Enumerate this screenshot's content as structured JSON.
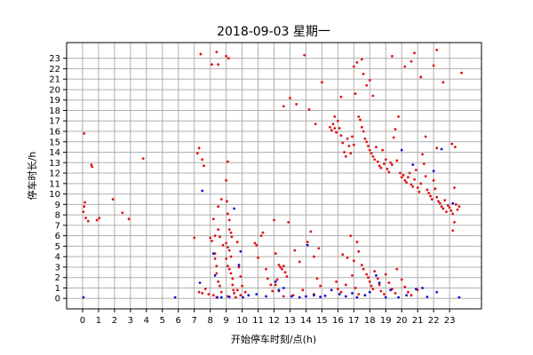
{
  "chart_data": {
    "type": "scatter",
    "title": "2018-09-03 星期一",
    "xlabel": "开始停车时刻/点(h)",
    "ylabel": "停车时长/h",
    "xlim": [
      -1,
      25
    ],
    "ylim": [
      -1,
      24.5
    ],
    "xticks": [
      0,
      1,
      2,
      3,
      4,
      5,
      6,
      7,
      8,
      9,
      10,
      11,
      12,
      13,
      14,
      15,
      16,
      17,
      18,
      19,
      20,
      21,
      22,
      23
    ],
    "yticks": [
      0,
      1,
      2,
      3,
      4,
      5,
      6,
      7,
      8,
      9,
      10,
      11,
      12,
      13,
      14,
      15,
      16,
      17,
      18,
      19,
      20,
      21,
      22,
      23
    ],
    "grid": true,
    "colors": {
      "series_red": "#e01010",
      "series_blue": "#1010d0",
      "grid": "#b0b0b0"
    },
    "series": [
      {
        "color": "#e01010",
        "points": [
          [
            0.1,
            15.8
          ],
          [
            0.05,
            8.3
          ],
          [
            0.1,
            8.8
          ],
          [
            0.15,
            9.2
          ],
          [
            0.2,
            7.7
          ],
          [
            0.35,
            7.4
          ],
          [
            0.55,
            12.8
          ],
          [
            0.6,
            12.6
          ],
          [
            0.9,
            7.5
          ],
          [
            1.05,
            7.7
          ],
          [
            1.9,
            9.5
          ],
          [
            2.5,
            8.2
          ],
          [
            2.9,
            7.6
          ],
          [
            3.8,
            13.4
          ],
          [
            7.0,
            5.8
          ],
          [
            7.2,
            13.9
          ],
          [
            7.3,
            14.4
          ],
          [
            7.4,
            23.4
          ],
          [
            7.5,
            13.3
          ],
          [
            7.6,
            12.7
          ],
          [
            7.3,
            0.6
          ],
          [
            7.5,
            0.5
          ],
          [
            7.7,
            0.9
          ],
          [
            7.9,
            0.4
          ],
          [
            8.1,
            22.4
          ],
          [
            8.4,
            23.6
          ],
          [
            8.5,
            22.4
          ],
          [
            8.7,
            9.5
          ],
          [
            8.0,
            5.8
          ],
          [
            8.1,
            5.5
          ],
          [
            8.2,
            7.6
          ],
          [
            8.3,
            4.3
          ],
          [
            8.3,
            3.8
          ],
          [
            8.4,
            3.1
          ],
          [
            8.4,
            2.4
          ],
          [
            8.5,
            1.6
          ],
          [
            8.6,
            1.2
          ],
          [
            8.7,
            0.6
          ],
          [
            8.8,
            5.1
          ],
          [
            8.5,
            6.6
          ],
          [
            8.5,
            8.8
          ],
          [
            8.6,
            5.9
          ],
          [
            8.3,
            6.0
          ],
          [
            8.2,
            0.3
          ],
          [
            8.4,
            0.1
          ],
          [
            9.0,
            23.2
          ],
          [
            9.15,
            23.0
          ],
          [
            9.1,
            13.1
          ],
          [
            9.0,
            11.3
          ],
          [
            9.05,
            9.3
          ],
          [
            9.1,
            8.1
          ],
          [
            9.2,
            7.5
          ],
          [
            9.2,
            6.6
          ],
          [
            9.3,
            6.3
          ],
          [
            9.35,
            5.9
          ],
          [
            9.0,
            5.3
          ],
          [
            9.1,
            4.9
          ],
          [
            9.2,
            4.6
          ],
          [
            9.3,
            4.0
          ],
          [
            9.0,
            3.8
          ],
          [
            9.1,
            3.1
          ],
          [
            9.2,
            2.8
          ],
          [
            9.3,
            2.4
          ],
          [
            9.4,
            1.9
          ],
          [
            9.4,
            1.3
          ],
          [
            9.45,
            0.8
          ],
          [
            9.5,
            0.5
          ],
          [
            9.1,
            0.2
          ],
          [
            9.6,
            0.1
          ],
          [
            9.7,
            5.4
          ],
          [
            9.8,
            3.0
          ],
          [
            9.9,
            2.1
          ],
          [
            10.0,
            1.2
          ],
          [
            10.2,
            0.6
          ],
          [
            9.7,
            0.8
          ],
          [
            9.9,
            0.3
          ],
          [
            10.8,
            5.3
          ],
          [
            10.9,
            5.1
          ],
          [
            11.2,
            6.0
          ],
          [
            11.3,
            6.3
          ],
          [
            11.0,
            3.9
          ],
          [
            11.5,
            2.8
          ],
          [
            11.6,
            1.9
          ],
          [
            11.8,
            1.3
          ],
          [
            11.9,
            0.7
          ],
          [
            12.1,
            4.3
          ],
          [
            12.3,
            3.2
          ],
          [
            12.4,
            3.0
          ],
          [
            12.5,
            2.8
          ],
          [
            12.6,
            3.1
          ],
          [
            12.7,
            2.5
          ],
          [
            12.8,
            2.1
          ],
          [
            12.2,
            1.8
          ],
          [
            12.1,
            1.3
          ],
          [
            12.3,
            0.7
          ],
          [
            12.6,
            0.2
          ],
          [
            12.9,
            7.3
          ],
          [
            12.0,
            7.5
          ],
          [
            12.6,
            18.4
          ],
          [
            13.0,
            19.2
          ],
          [
            13.4,
            18.6
          ],
          [
            14.2,
            18.1
          ],
          [
            13.9,
            23.3
          ],
          [
            14.6,
            16.7
          ],
          [
            13.3,
            4.6
          ],
          [
            13.6,
            3.5
          ],
          [
            13.8,
            0.8
          ],
          [
            13.2,
            0.3
          ],
          [
            14.1,
            5.4
          ],
          [
            14.3,
            6.4
          ],
          [
            14.5,
            4.0
          ],
          [
            14.8,
            4.8
          ],
          [
            14.7,
            1.9
          ],
          [
            14.9,
            1.2
          ],
          [
            14.5,
            0.4
          ],
          [
            15.0,
            20.7
          ],
          [
            15.5,
            16.4
          ],
          [
            15.6,
            16.1
          ],
          [
            15.7,
            16.7
          ],
          [
            15.8,
            16.3
          ],
          [
            15.9,
            15.9
          ],
          [
            15.8,
            17.4
          ],
          [
            16.0,
            17.0
          ],
          [
            16.1,
            16.3
          ],
          [
            16.2,
            15.6
          ],
          [
            16.3,
            14.9
          ],
          [
            16.4,
            14.0
          ],
          [
            16.5,
            13.6
          ],
          [
            16.6,
            15.3
          ],
          [
            16.7,
            14.6
          ],
          [
            16.8,
            13.9
          ],
          [
            16.9,
            15.5
          ],
          [
            17.0,
            14.7
          ],
          [
            17.0,
            22.2
          ],
          [
            17.2,
            22.6
          ],
          [
            17.5,
            22.9
          ],
          [
            17.6,
            21.5
          ],
          [
            17.8,
            20.4
          ],
          [
            16.2,
            19.3
          ],
          [
            17.1,
            19.6
          ],
          [
            18.0,
            20.9
          ],
          [
            18.2,
            19.4
          ],
          [
            17.3,
            17.4
          ],
          [
            17.4,
            17.1
          ],
          [
            17.5,
            16.4
          ],
          [
            17.6,
            16.0
          ],
          [
            17.7,
            15.3
          ],
          [
            17.8,
            15.0
          ],
          [
            17.9,
            14.6
          ],
          [
            18.0,
            14.2
          ],
          [
            18.1,
            13.9
          ],
          [
            18.2,
            13.6
          ],
          [
            18.3,
            13.3
          ],
          [
            18.4,
            14.5
          ],
          [
            18.5,
            13.1
          ],
          [
            18.6,
            12.7
          ],
          [
            18.7,
            12.5
          ],
          [
            18.8,
            14.2
          ],
          [
            18.9,
            12.9
          ],
          [
            19.0,
            13.3
          ],
          [
            19.1,
            12.4
          ],
          [
            19.2,
            12.1
          ],
          [
            19.3,
            13.0
          ],
          [
            19.4,
            12.8
          ],
          [
            19.5,
            15.4
          ],
          [
            19.6,
            16.2
          ],
          [
            19.8,
            17.4
          ],
          [
            19.7,
            13.2
          ],
          [
            19.9,
            12.0
          ],
          [
            20.0,
            11.6
          ],
          [
            20.1,
            11.8
          ],
          [
            20.2,
            11.3
          ],
          [
            20.3,
            11.1
          ],
          [
            20.4,
            11.6
          ],
          [
            20.5,
            12.0
          ],
          [
            20.6,
            10.9
          ],
          [
            20.7,
            10.7
          ],
          [
            20.8,
            11.4
          ],
          [
            20.9,
            12.3
          ],
          [
            21.0,
            10.6
          ],
          [
            21.1,
            10.2
          ],
          [
            21.2,
            11.0
          ],
          [
            21.3,
            13.8
          ],
          [
            21.4,
            12.9
          ],
          [
            21.5,
            11.7
          ],
          [
            21.6,
            10.4
          ],
          [
            21.7,
            10.1
          ],
          [
            21.8,
            9.8
          ],
          [
            21.9,
            9.5
          ],
          [
            22.0,
            11.3
          ],
          [
            22.1,
            10.5
          ],
          [
            22.2,
            9.7
          ],
          [
            22.3,
            9.3
          ],
          [
            22.4,
            9.1
          ],
          [
            22.5,
            8.8
          ],
          [
            22.6,
            8.6
          ],
          [
            22.7,
            9.4
          ],
          [
            22.8,
            8.3
          ],
          [
            22.9,
            8.9
          ],
          [
            23.0,
            8.7
          ],
          [
            23.1,
            8.4
          ],
          [
            23.2,
            8.1
          ],
          [
            23.3,
            10.6
          ],
          [
            23.4,
            9.0
          ],
          [
            23.5,
            8.5
          ],
          [
            23.6,
            8.8
          ],
          [
            23.15,
            14.8
          ],
          [
            23.35,
            14.5
          ],
          [
            23.2,
            6.5
          ],
          [
            23.3,
            7.3
          ],
          [
            23.75,
            21.6
          ],
          [
            19.4,
            23.2
          ],
          [
            20.2,
            22.2
          ],
          [
            20.8,
            23.5
          ],
          [
            20.6,
            22.7
          ],
          [
            21.2,
            21.2
          ],
          [
            22.0,
            22.3
          ],
          [
            22.2,
            23.8
          ],
          [
            22.6,
            20.7
          ],
          [
            21.5,
            15.5
          ],
          [
            22.2,
            14.4
          ],
          [
            16.8,
            6.0
          ],
          [
            17.2,
            5.4
          ],
          [
            17.3,
            4.5
          ],
          [
            17.0,
            3.6
          ],
          [
            16.3,
            4.2
          ],
          [
            16.6,
            3.9
          ],
          [
            17.5,
            3.2
          ],
          [
            17.6,
            2.8
          ],
          [
            17.8,
            2.3
          ],
          [
            17.9,
            2.0
          ],
          [
            18.0,
            1.6
          ],
          [
            18.1,
            1.2
          ],
          [
            18.2,
            0.9
          ],
          [
            18.3,
            2.6
          ],
          [
            18.5,
            1.9
          ],
          [
            18.6,
            1.3
          ],
          [
            18.7,
            0.7
          ],
          [
            18.9,
            0.4
          ],
          [
            19.0,
            2.3
          ],
          [
            19.2,
            1.5
          ],
          [
            19.4,
            0.9
          ],
          [
            19.6,
            0.5
          ],
          [
            19.7,
            2.8
          ],
          [
            20.0,
            1.8
          ],
          [
            20.2,
            1.1
          ],
          [
            20.4,
            0.6
          ],
          [
            20.6,
            0.3
          ],
          [
            21.0,
            0.8
          ],
          [
            15.9,
            1.6
          ],
          [
            16.0,
            0.9
          ],
          [
            16.2,
            0.6
          ],
          [
            16.5,
            1.3
          ],
          [
            16.9,
            2.2
          ],
          [
            17.1,
            1.0
          ],
          [
            17.3,
            0.4
          ]
        ]
      },
      {
        "color": "#1010d0",
        "points": [
          [
            0.05,
            0.1
          ],
          [
            5.8,
            0.1
          ],
          [
            7.35,
            1.5
          ],
          [
            7.5,
            10.3
          ],
          [
            8.2,
            4.3
          ],
          [
            8.3,
            2.2
          ],
          [
            8.45,
            0.1
          ],
          [
            8.7,
            0.1
          ],
          [
            9.2,
            0.15
          ],
          [
            9.5,
            8.6
          ],
          [
            9.8,
            3.2
          ],
          [
            9.9,
            4.5
          ],
          [
            10.05,
            0.1
          ],
          [
            10.4,
            0.3
          ],
          [
            10.9,
            0.4
          ],
          [
            11.5,
            0.2
          ],
          [
            12.1,
            1.6
          ],
          [
            12.3,
            0.8
          ],
          [
            12.6,
            1.0
          ],
          [
            13.1,
            0.2
          ],
          [
            13.6,
            0.1
          ],
          [
            14.0,
            0.2
          ],
          [
            14.1,
            5.1
          ],
          [
            14.5,
            0.3
          ],
          [
            14.9,
            0.15
          ],
          [
            15.2,
            0.25
          ],
          [
            15.6,
            0.8
          ],
          [
            16.1,
            0.4
          ],
          [
            16.5,
            0.2
          ],
          [
            16.9,
            0.5
          ],
          [
            17.2,
            0.1
          ],
          [
            17.7,
            0.3
          ],
          [
            18.0,
            0.6
          ],
          [
            18.4,
            2.2
          ],
          [
            18.6,
            1.5
          ],
          [
            19.0,
            0.1
          ],
          [
            19.3,
            0.8
          ],
          [
            19.8,
            0.1
          ],
          [
            20.0,
            14.2
          ],
          [
            20.3,
            0.3
          ],
          [
            20.7,
            12.8
          ],
          [
            20.9,
            0.9
          ],
          [
            21.3,
            1.0
          ],
          [
            21.6,
            0.15
          ],
          [
            22.0,
            12.2
          ],
          [
            22.2,
            0.6
          ],
          [
            22.5,
            14.3
          ],
          [
            23.2,
            9.1
          ],
          [
            23.6,
            0.1
          ]
        ]
      }
    ]
  }
}
